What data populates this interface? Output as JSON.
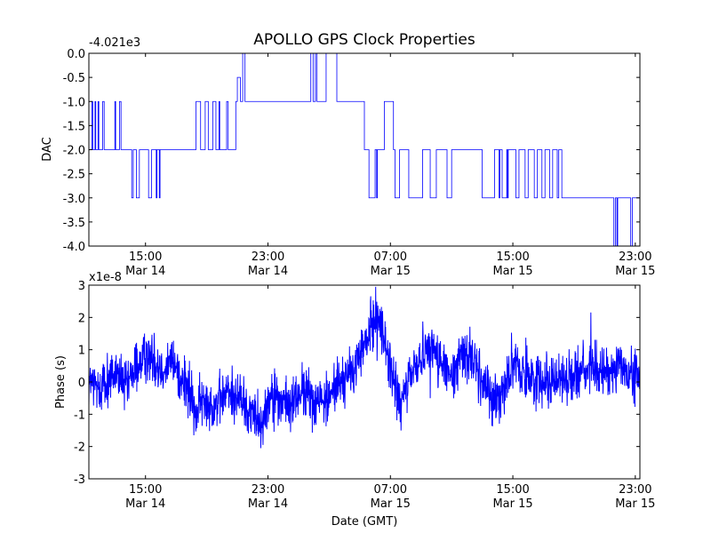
{
  "figure": {
    "title": "APOLLO GPS Clock Properties",
    "xlabel": "Date (GMT)",
    "line_color": "#0000ff"
  },
  "chart_data": [
    {
      "type": "line",
      "name": "dac",
      "ylabel": "DAC",
      "offset_label": "-4.021e3",
      "ylim": [
        -4.0,
        0.0
      ],
      "yticks": [
        0.0,
        -0.5,
        -1.0,
        -1.5,
        -2.0,
        -2.5,
        -3.0,
        -3.5,
        -4.0
      ],
      "ytick_labels": [
        "0.0",
        "-0.5",
        "-1.0",
        "-1.5",
        "-2.0",
        "-2.5",
        "-3.0",
        "-3.5",
        "-4.0"
      ],
      "xlim_hours": [
        11.3,
        47.3
      ],
      "xticks_hours": [
        15,
        23,
        31,
        39,
        47
      ],
      "xtick_labels": [
        {
          "time": "15:00",
          "date": "Mar 14"
        },
        {
          "time": "23:00",
          "date": "Mar 14"
        },
        {
          "time": "07:00",
          "date": "Mar 15"
        },
        {
          "time": "15:00",
          "date": "Mar 15"
        },
        {
          "time": "23:00",
          "date": "Mar 15"
        }
      ],
      "series": [
        {
          "name": "DAC",
          "points": [
            [
              11.3,
              -2
            ],
            [
              11.5,
              -2
            ],
            [
              11.5,
              -1
            ],
            [
              11.55,
              -1
            ],
            [
              11.55,
              -2
            ],
            [
              11.7,
              -2
            ],
            [
              11.7,
              -1
            ],
            [
              11.75,
              -1
            ],
            [
              11.75,
              -2
            ],
            [
              11.9,
              -2
            ],
            [
              11.9,
              -1
            ],
            [
              11.95,
              -1
            ],
            [
              11.95,
              -2
            ],
            [
              12.2,
              -2
            ],
            [
              12.2,
              -1
            ],
            [
              12.3,
              -1
            ],
            [
              12.3,
              -2
            ],
            [
              13.0,
              -2
            ],
            [
              13.0,
              -1
            ],
            [
              13.05,
              -1
            ],
            [
              13.05,
              -2
            ],
            [
              13.3,
              -2
            ],
            [
              13.3,
              -1
            ],
            [
              13.4,
              -1
            ],
            [
              13.4,
              -2
            ],
            [
              14.1,
              -2
            ],
            [
              14.1,
              -3
            ],
            [
              14.2,
              -3
            ],
            [
              14.2,
              -2
            ],
            [
              14.4,
              -2
            ],
            [
              14.4,
              -3
            ],
            [
              14.6,
              -3
            ],
            [
              14.6,
              -2
            ],
            [
              15.2,
              -2
            ],
            [
              15.2,
              -3
            ],
            [
              15.4,
              -3
            ],
            [
              15.4,
              -2
            ],
            [
              15.7,
              -2
            ],
            [
              15.7,
              -3
            ],
            [
              15.75,
              -3
            ],
            [
              15.75,
              -2
            ],
            [
              15.9,
              -2
            ],
            [
              15.9,
              -3
            ],
            [
              15.95,
              -3
            ],
            [
              15.95,
              -2
            ],
            [
              18.3,
              -2
            ],
            [
              18.3,
              -1
            ],
            [
              18.6,
              -1
            ],
            [
              18.6,
              -2
            ],
            [
              18.9,
              -2
            ],
            [
              18.9,
              -1
            ],
            [
              19.1,
              -1
            ],
            [
              19.1,
              -2
            ],
            [
              19.4,
              -2
            ],
            [
              19.4,
              -1
            ],
            [
              19.6,
              -1
            ],
            [
              19.6,
              -2
            ],
            [
              19.8,
              -2
            ],
            [
              19.8,
              -1
            ],
            [
              19.85,
              -1
            ],
            [
              19.85,
              -2
            ],
            [
              20.3,
              -2
            ],
            [
              20.3,
              -1
            ],
            [
              20.4,
              -1
            ],
            [
              20.4,
              -2
            ],
            [
              20.9,
              -2
            ],
            [
              20.9,
              -1
            ],
            [
              21.0,
              -1
            ],
            [
              21.0,
              -0.5
            ],
            [
              21.2,
              -0.5
            ],
            [
              21.2,
              -1
            ],
            [
              21.35,
              -1
            ],
            [
              21.35,
              0
            ],
            [
              21.5,
              0
            ],
            [
              21.5,
              -1
            ],
            [
              25.8,
              -1
            ],
            [
              25.8,
              0
            ],
            [
              25.95,
              0
            ],
            [
              25.95,
              -1
            ],
            [
              26.1,
              -1
            ],
            [
              26.1,
              0
            ],
            [
              26.2,
              0
            ],
            [
              26.2,
              -1
            ],
            [
              26.8,
              -1
            ],
            [
              26.8,
              0
            ],
            [
              27.5,
              0
            ],
            [
              27.5,
              -1
            ],
            [
              29.3,
              -1
            ],
            [
              29.3,
              -2
            ],
            [
              29.6,
              -2
            ],
            [
              29.6,
              -3
            ],
            [
              30.0,
              -3
            ],
            [
              30.0,
              -2
            ],
            [
              30.1,
              -2
            ],
            [
              30.1,
              -3
            ],
            [
              30.15,
              -3
            ],
            [
              30.15,
              -2
            ],
            [
              30.6,
              -2
            ],
            [
              30.6,
              -1
            ],
            [
              31.2,
              -1
            ],
            [
              31.2,
              -2
            ],
            [
              31.3,
              -2
            ],
            [
              31.3,
              -3
            ],
            [
              31.6,
              -3
            ],
            [
              31.6,
              -2
            ],
            [
              32.2,
              -2
            ],
            [
              32.2,
              -3
            ],
            [
              33.1,
              -3
            ],
            [
              33.1,
              -2
            ],
            [
              33.6,
              -2
            ],
            [
              33.6,
              -3
            ],
            [
              34.0,
              -3
            ],
            [
              34.0,
              -2
            ],
            [
              34.7,
              -2
            ],
            [
              34.7,
              -3
            ],
            [
              35.0,
              -3
            ],
            [
              35.0,
              -2
            ],
            [
              37.0,
              -2
            ],
            [
              37.0,
              -3
            ],
            [
              37.8,
              -3
            ],
            [
              37.8,
              -2
            ],
            [
              38.1,
              -2
            ],
            [
              38.1,
              -3
            ],
            [
              38.15,
              -3
            ],
            [
              38.15,
              -2
            ],
            [
              38.3,
              -2
            ],
            [
              38.3,
              -3
            ],
            [
              38.6,
              -3
            ],
            [
              38.6,
              -2
            ],
            [
              38.65,
              -2
            ],
            [
              38.65,
              -3
            ],
            [
              38.7,
              -3
            ],
            [
              38.7,
              -2
            ],
            [
              39.2,
              -2
            ],
            [
              39.2,
              -3
            ],
            [
              39.4,
              -3
            ],
            [
              39.4,
              -2
            ],
            [
              39.8,
              -2
            ],
            [
              39.8,
              -3
            ],
            [
              40.0,
              -3
            ],
            [
              40.0,
              -2
            ],
            [
              40.4,
              -2
            ],
            [
              40.4,
              -3
            ],
            [
              40.6,
              -3
            ],
            [
              40.6,
              -2
            ],
            [
              40.9,
              -2
            ],
            [
              40.9,
              -3
            ],
            [
              41.1,
              -3
            ],
            [
              41.1,
              -2
            ],
            [
              41.4,
              -2
            ],
            [
              41.4,
              -3
            ],
            [
              41.6,
              -3
            ],
            [
              41.6,
              -2
            ],
            [
              41.9,
              -2
            ],
            [
              41.9,
              -3
            ],
            [
              42.0,
              -3
            ],
            [
              42.0,
              -2
            ],
            [
              42.2,
              -2
            ],
            [
              42.2,
              -3
            ],
            [
              45.6,
              -3
            ],
            [
              45.6,
              -4
            ],
            [
              45.7,
              -4
            ],
            [
              45.7,
              -3
            ],
            [
              45.8,
              -3
            ],
            [
              45.8,
              -4
            ],
            [
              45.85,
              -4
            ],
            [
              45.85,
              -3
            ],
            [
              46.7,
              -3
            ],
            [
              46.7,
              -4
            ],
            [
              46.8,
              -4
            ],
            [
              46.8,
              -3
            ],
            [
              47.3,
              -3
            ]
          ]
        }
      ]
    },
    {
      "type": "line",
      "name": "phase",
      "ylabel": "Phase (s)",
      "offset_label": "x1e-8",
      "ylim": [
        -3,
        3
      ],
      "yticks": [
        3,
        2,
        1,
        0,
        -1,
        -2,
        -3
      ],
      "ytick_labels": [
        "3",
        "2",
        "1",
        "0",
        "-1",
        "-2",
        "-3"
      ],
      "xlim_hours": [
        11.3,
        47.3
      ],
      "xticks_hours": [
        15,
        23,
        31,
        39,
        47
      ],
      "xtick_labels": [
        {
          "time": "15:00",
          "date": "Mar 14"
        },
        {
          "time": "23:00",
          "date": "Mar 14"
        },
        {
          "time": "07:00",
          "date": "Mar 15"
        },
        {
          "time": "15:00",
          "date": "Mar 15"
        },
        {
          "time": "23:00",
          "date": "Mar 15"
        }
      ],
      "series": [
        {
          "name": "Phase",
          "trend": [
            [
              11.3,
              0
            ],
            [
              12.0,
              -0.2
            ],
            [
              13.0,
              0.3
            ],
            [
              13.8,
              -0.2
            ],
            [
              14.5,
              0.6
            ],
            [
              15.2,
              0.8
            ],
            [
              16.0,
              0.5
            ],
            [
              16.8,
              0.6
            ],
            [
              17.5,
              0.0
            ],
            [
              18.3,
              -0.9
            ],
            [
              18.8,
              -0.6
            ],
            [
              19.5,
              -0.7
            ],
            [
              20.5,
              -0.3
            ],
            [
              21.2,
              -0.5
            ],
            [
              21.8,
              -0.9
            ],
            [
              22.6,
              -1.2
            ],
            [
              23.3,
              -0.3
            ],
            [
              23.9,
              -0.7
            ],
            [
              24.5,
              -0.7
            ],
            [
              25.2,
              -0.3
            ],
            [
              25.9,
              -0.5
            ],
            [
              26.8,
              -0.6
            ],
            [
              27.6,
              0.0
            ],
            [
              28.4,
              0.2
            ],
            [
              29.0,
              0.8
            ],
            [
              29.6,
              1.5
            ],
            [
              30.1,
              2.1
            ],
            [
              30.6,
              1.4
            ],
            [
              31.1,
              0.2
            ],
            [
              31.7,
              -0.8
            ],
            [
              32.3,
              0.2
            ],
            [
              33.0,
              0.8
            ],
            [
              33.6,
              1.2
            ],
            [
              34.4,
              0.5
            ],
            [
              35.1,
              0.0
            ],
            [
              35.6,
              0.9
            ],
            [
              36.3,
              0.8
            ],
            [
              36.9,
              0.1
            ],
            [
              37.6,
              -0.4
            ],
            [
              38.2,
              -0.5
            ],
            [
              38.9,
              0.6
            ],
            [
              39.6,
              0.3
            ],
            [
              40.6,
              0.1
            ],
            [
              41.6,
              0.1
            ],
            [
              42.6,
              0.1
            ],
            [
              43.6,
              0.4
            ],
            [
              44.5,
              0.4
            ],
            [
              45.2,
              0.2
            ],
            [
              45.8,
              0.7
            ],
            [
              46.4,
              0.2
            ],
            [
              47.3,
              0.2
            ]
          ],
          "noise_amplitude": 0.4
        }
      ]
    }
  ]
}
